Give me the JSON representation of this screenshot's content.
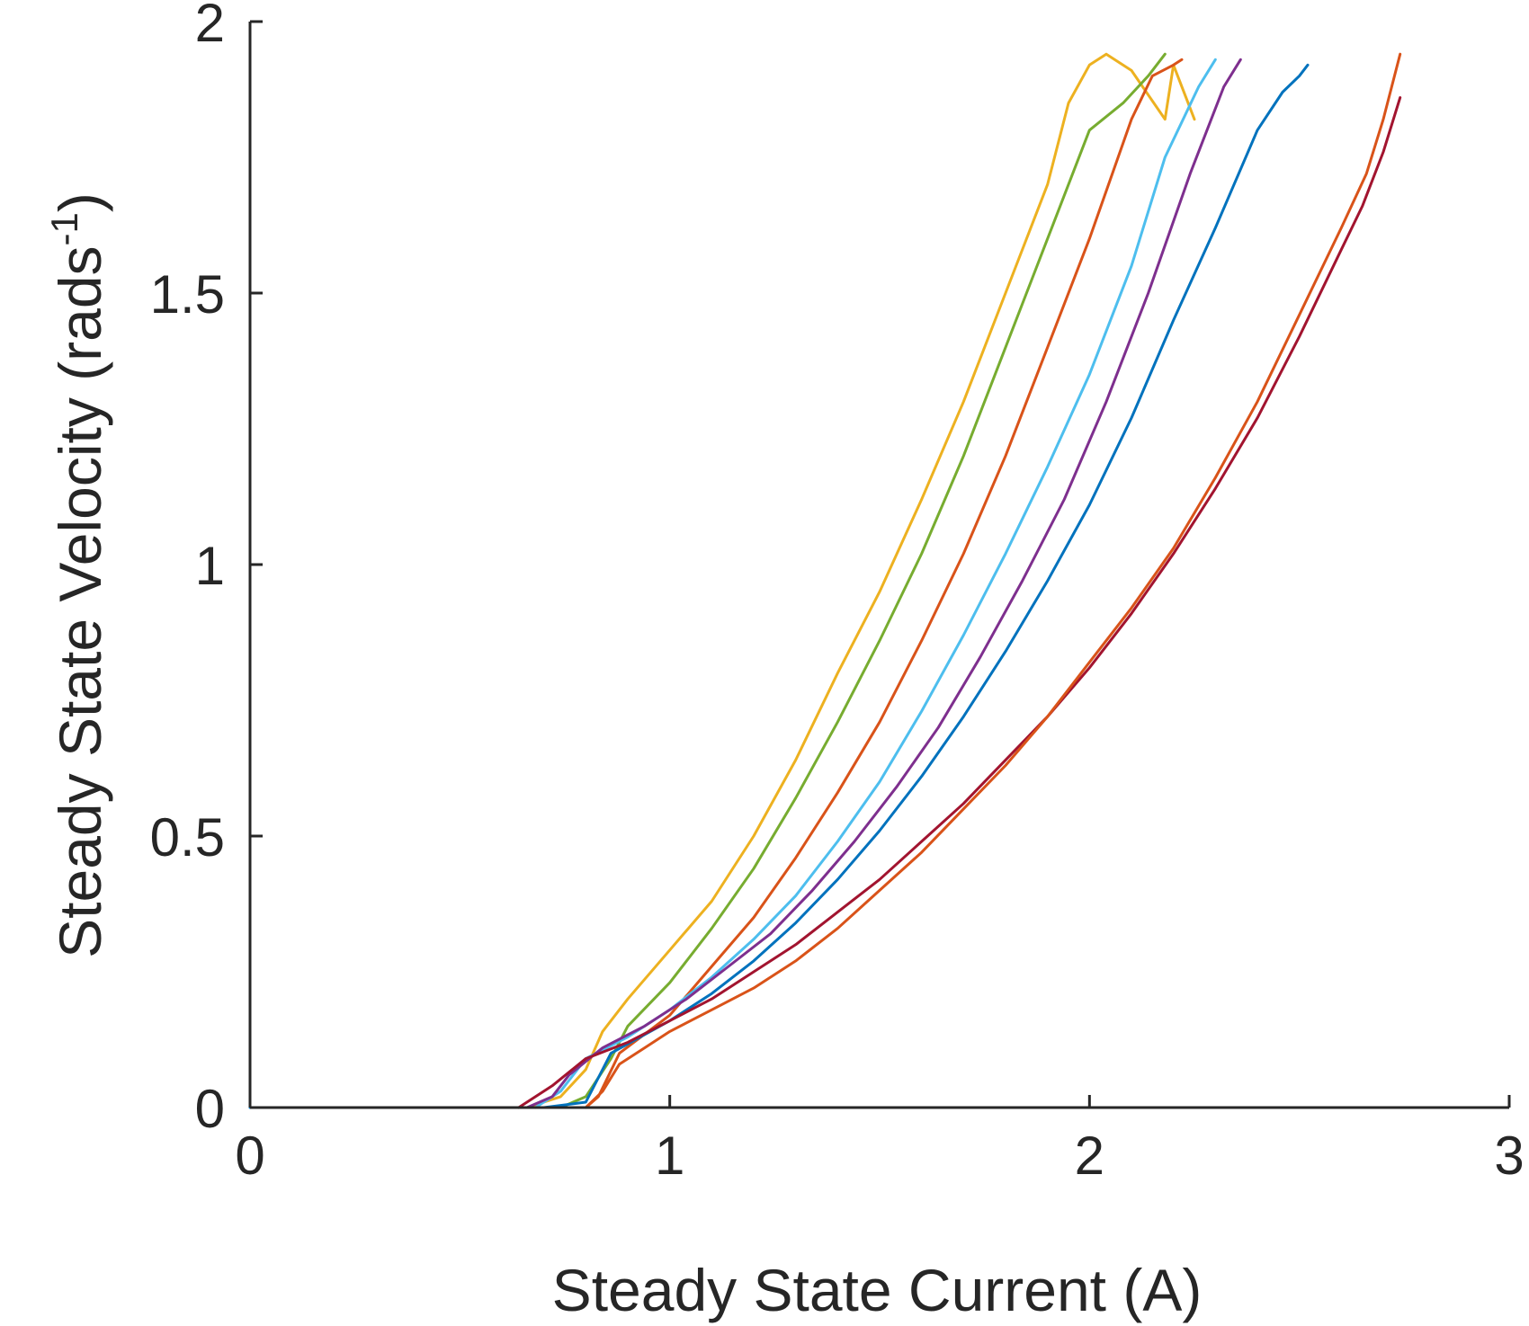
{
  "chart_data": {
    "type": "line",
    "xlabel": "Steady State Current (A)",
    "ylabel_main": "Steady State Velocity (rads",
    "ylabel_sup": "-1",
    "ylabel_close": ")",
    "xlim": [
      0,
      3
    ],
    "ylim": [
      0,
      2
    ],
    "xticks": [
      0,
      1,
      2,
      3
    ],
    "xtick_labels": [
      "0",
      "1",
      "2",
      "3"
    ],
    "yticks": [
      0,
      0.5,
      1,
      1.5,
      2
    ],
    "ytick_labels": [
      "0",
      "0.5",
      "1",
      "1.5",
      "2"
    ],
    "grid": false,
    "legend": "none",
    "series": [
      {
        "color": "#EDB120",
        "x": [
          0.6,
          0.66,
          0.74,
          0.8,
          0.84,
          0.9,
          1.0,
          1.1,
          1.2,
          1.3,
          1.4,
          1.5,
          1.6,
          1.7,
          1.8,
          1.9,
          1.95,
          2.0,
          2.04,
          2.1,
          2.18,
          2.2,
          2.25
        ],
        "y": [
          0.0,
          0.0,
          0.02,
          0.07,
          0.14,
          0.2,
          0.29,
          0.38,
          0.5,
          0.64,
          0.8,
          0.95,
          1.12,
          1.3,
          1.5,
          1.7,
          1.85,
          1.92,
          1.94,
          1.91,
          1.82,
          1.92,
          1.82
        ]
      },
      {
        "color": "#77AC30",
        "x": [
          0.66,
          0.74,
          0.8,
          0.86,
          0.9,
          1.0,
          1.1,
          1.2,
          1.3,
          1.4,
          1.5,
          1.6,
          1.7,
          1.8,
          1.9,
          2.0,
          2.08,
          2.14,
          2.16,
          2.18
        ],
        "y": [
          0.0,
          0.0,
          0.02,
          0.09,
          0.15,
          0.23,
          0.33,
          0.44,
          0.57,
          0.71,
          0.86,
          1.02,
          1.2,
          1.4,
          1.6,
          1.8,
          1.85,
          1.9,
          1.92,
          1.94
        ]
      },
      {
        "color": "#D95319",
        "x": [
          0.7,
          0.8,
          0.83,
          0.88,
          1.0,
          1.1,
          1.2,
          1.3,
          1.4,
          1.5,
          1.6,
          1.7,
          1.8,
          1.9,
          2.0,
          2.1,
          2.15,
          2.2,
          2.22
        ],
        "y": [
          0.0,
          0.0,
          0.02,
          0.1,
          0.17,
          0.26,
          0.35,
          0.46,
          0.58,
          0.71,
          0.86,
          1.02,
          1.2,
          1.4,
          1.6,
          1.82,
          1.9,
          1.92,
          1.93
        ]
      },
      {
        "color": "#4DBEEE",
        "x": [
          0.68,
          0.74,
          0.8,
          0.9,
          1.0,
          1.1,
          1.2,
          1.3,
          1.4,
          1.5,
          1.6,
          1.7,
          1.8,
          1.9,
          2.0,
          2.1,
          2.18,
          2.26,
          2.3
        ],
        "y": [
          0.0,
          0.03,
          0.09,
          0.13,
          0.18,
          0.24,
          0.31,
          0.39,
          0.49,
          0.6,
          0.73,
          0.87,
          1.02,
          1.18,
          1.35,
          1.55,
          1.75,
          1.88,
          1.93
        ]
      },
      {
        "color": "#7E2F8E",
        "x": [
          0.66,
          0.72,
          0.76,
          0.84,
          0.94,
          1.04,
          1.14,
          1.24,
          1.34,
          1.44,
          1.54,
          1.64,
          1.74,
          1.84,
          1.94,
          2.04,
          2.14,
          2.24,
          2.32,
          2.36
        ],
        "y": [
          0.0,
          0.02,
          0.06,
          0.11,
          0.15,
          0.2,
          0.26,
          0.32,
          0.4,
          0.49,
          0.59,
          0.7,
          0.83,
          0.97,
          1.12,
          1.3,
          1.5,
          1.72,
          1.88,
          1.93
        ]
      },
      {
        "color": "#0072BD",
        "x": [
          0.0,
          0.3,
          0.6,
          0.7,
          0.8,
          0.86,
          1.0,
          1.1,
          1.2,
          1.3,
          1.4,
          1.5,
          1.6,
          1.7,
          1.8,
          1.9,
          2.0,
          2.1,
          2.2,
          2.3,
          2.4,
          2.46,
          2.5,
          2.52
        ],
        "y": [
          0.0,
          0.0,
          0.0,
          0.0,
          0.01,
          0.1,
          0.16,
          0.21,
          0.27,
          0.34,
          0.42,
          0.51,
          0.61,
          0.72,
          0.84,
          0.97,
          1.11,
          1.27,
          1.45,
          1.62,
          1.8,
          1.87,
          1.9,
          1.92
        ]
      },
      {
        "color": "#A2142F",
        "x": [
          0.64,
          0.72,
          0.8,
          0.9,
          1.0,
          1.1,
          1.2,
          1.3,
          1.4,
          1.5,
          1.6,
          1.7,
          1.8,
          1.9,
          2.0,
          2.1,
          2.2,
          2.3,
          2.4,
          2.5,
          2.6,
          2.65,
          2.7,
          2.74
        ],
        "y": [
          0.0,
          0.04,
          0.09,
          0.12,
          0.16,
          0.2,
          0.25,
          0.3,
          0.36,
          0.42,
          0.49,
          0.56,
          0.64,
          0.72,
          0.81,
          0.91,
          1.02,
          1.14,
          1.27,
          1.42,
          1.58,
          1.66,
          1.76,
          1.86
        ]
      },
      {
        "color": "#D95319",
        "x": [
          0.8,
          0.84,
          0.88,
          0.94,
          1.0,
          1.1,
          1.2,
          1.3,
          1.4,
          1.5,
          1.6,
          1.7,
          1.8,
          1.9,
          2.0,
          2.1,
          2.2,
          2.3,
          2.4,
          2.5,
          2.6,
          2.66,
          2.7,
          2.74
        ],
        "y": [
          0.0,
          0.03,
          0.08,
          0.11,
          0.14,
          0.18,
          0.22,
          0.27,
          0.33,
          0.4,
          0.47,
          0.55,
          0.63,
          0.72,
          0.82,
          0.92,
          1.03,
          1.16,
          1.3,
          1.46,
          1.62,
          1.72,
          1.82,
          1.94
        ]
      }
    ]
  }
}
